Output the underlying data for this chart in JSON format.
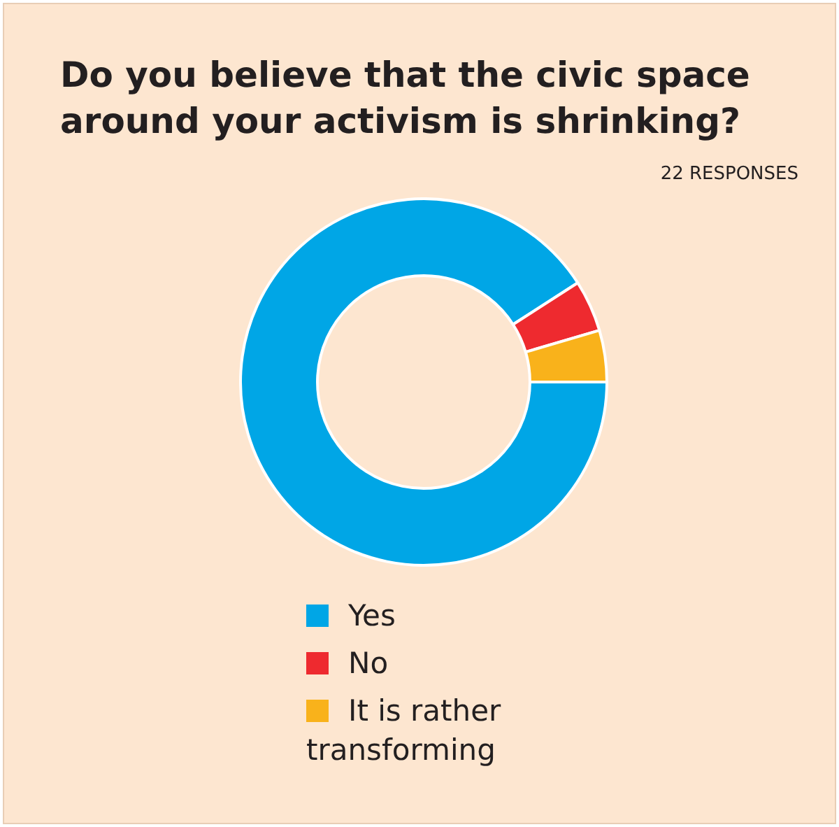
{
  "chart_data": {
    "type": "donut",
    "title": "Do you believe that the civic space around your activism is shrinking?",
    "subtitle": "22 RESPONSES",
    "categories": [
      "Yes",
      "No",
      "It is rather transforming"
    ],
    "values": [
      90.9,
      4.55,
      4.55
    ],
    "colors": [
      "#00a6e6",
      "#ee2a2f",
      "#f9b21b"
    ],
    "legend": "bottom"
  }
}
